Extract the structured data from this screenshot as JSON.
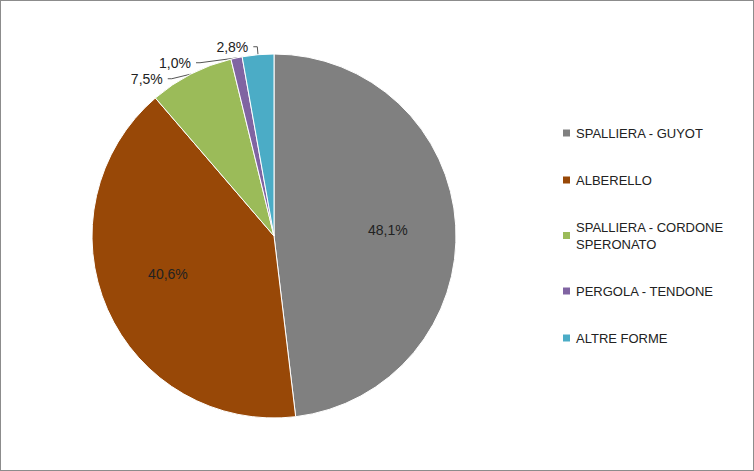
{
  "chart_data": {
    "type": "pie",
    "categories": [
      "SPALLIERA - GUYOT",
      "ALBERELLO",
      "SPALLIERA - CORDONE SPERONATO",
      "PERGOLA - TENDONE",
      "ALTRE FORME"
    ],
    "values": [
      48.1,
      40.6,
      7.5,
      1.0,
      2.8
    ],
    "value_labels": [
      "48,1%",
      "40,6%",
      "7,5%",
      "1,0%",
      "2,8%"
    ],
    "colors": [
      "#808080",
      "#984807",
      "#9bbb59",
      "#8064a2",
      "#4bacc6"
    ],
    "data_labels": true,
    "legend": "right"
  }
}
